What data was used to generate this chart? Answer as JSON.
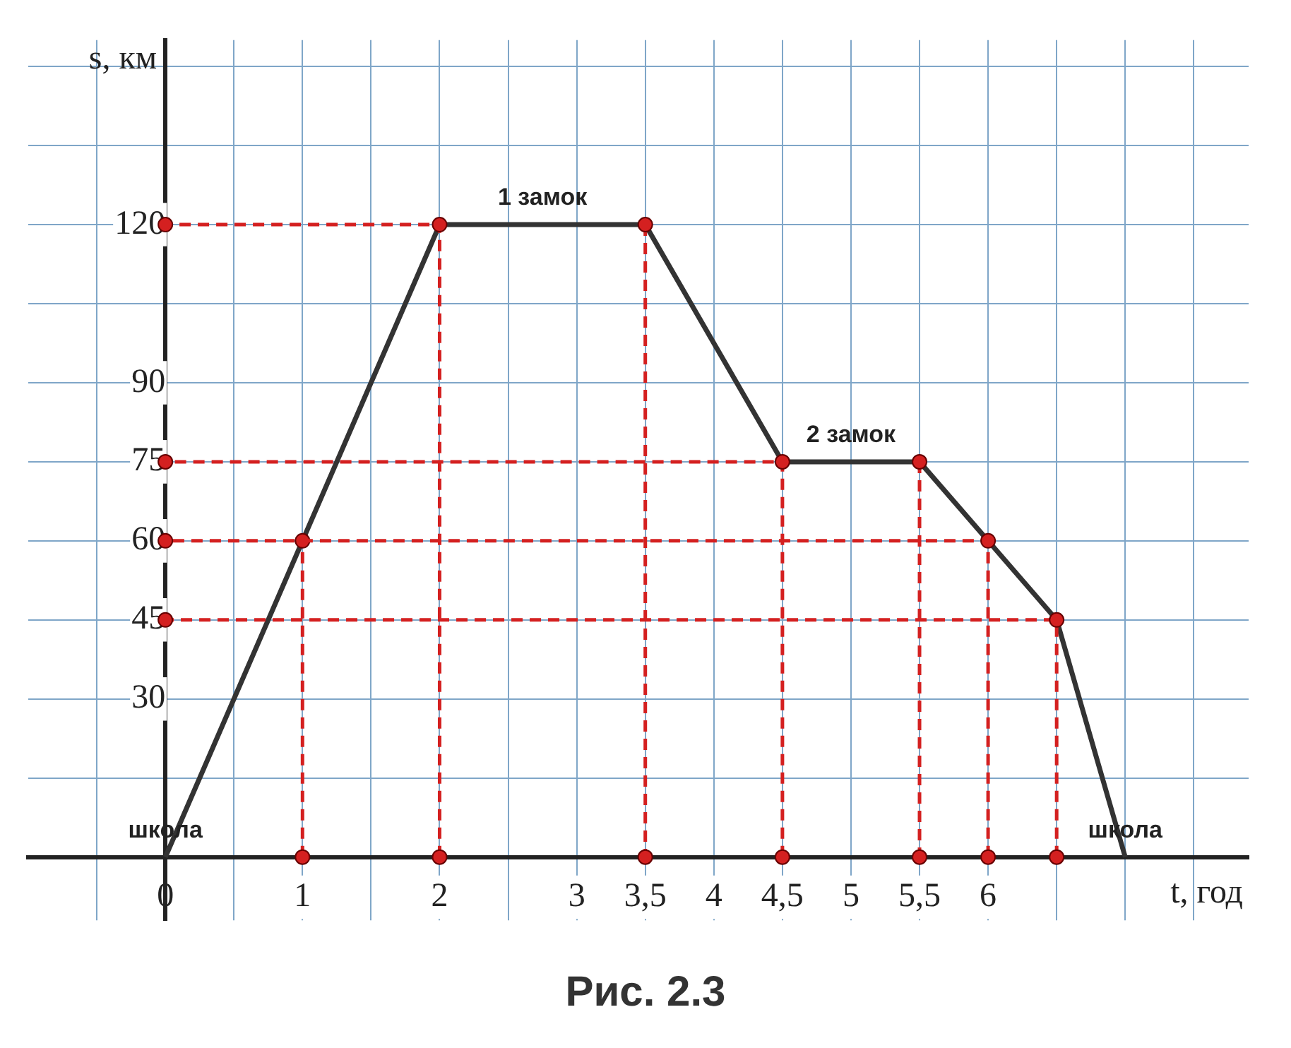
{
  "chart_data": {
    "type": "line",
    "xlabel": "t, год",
    "ylabel": "s, км",
    "xlim": [
      -1,
      7.9
    ],
    "ylim": [
      -12,
      155
    ],
    "xticks": [
      {
        "value": -0.5,
        "label": null
      },
      0,
      {
        "value": 0.5,
        "label": null
      },
      1,
      {
        "value": 1.5,
        "label": null
      },
      2,
      {
        "value": 2.5,
        "label": null
      },
      3,
      {
        "value": 3.5,
        "label": "3,5"
      },
      4,
      {
        "value": 4.5,
        "label": "4,5"
      },
      5,
      {
        "value": 5.5,
        "label": "5,5"
      },
      6,
      {
        "value": 6.5,
        "label": null
      },
      {
        "value": 7,
        "label": null
      },
      {
        "value": 7.5,
        "label": null
      }
    ],
    "yticks": [
      {
        "value": 15,
        "label": null
      },
      30,
      45,
      60,
      75,
      90,
      {
        "value": 105,
        "label": null
      },
      120,
      {
        "value": 135,
        "label": null
      },
      {
        "value": 150,
        "label": null
      }
    ],
    "grid": true,
    "legend": false,
    "series": [
      {
        "color": "#333333",
        "marker": "none",
        "line_style": "solid",
        "x": [
          0,
          1,
          2,
          3.5,
          4.5,
          5.5,
          6,
          6.5,
          7
        ],
        "values": [
          0,
          60,
          120,
          120,
          75,
          75,
          60,
          45,
          0
        ]
      },
      {
        "color": "#d42020",
        "marker": "circle",
        "line_style": "dashed",
        "x": [
          1,
          1
        ],
        "values": [
          0,
          60
        ]
      },
      {
        "color": "#d42020",
        "marker": "circle",
        "line_style": "dashed",
        "x": [
          2,
          2,
          0
        ],
        "values": [
          0,
          120,
          120
        ]
      },
      {
        "color": "#d42020",
        "marker": "circle",
        "line_style": "dashed",
        "x": [
          3.5,
          3.5
        ],
        "values": [
          120,
          0
        ]
      },
      {
        "color": "#d42020",
        "marker": "circle",
        "line_style": "dashed",
        "x": [
          4.5,
          4.5,
          0
        ],
        "values": [
          0,
          75,
          75
        ]
      },
      {
        "color": "#d42020",
        "marker": "circle",
        "line_style": "dashed",
        "x": [
          5.5,
          5.5
        ],
        "values": [
          75,
          0
        ]
      },
      {
        "color": "#d42020",
        "marker": "circle",
        "line_style": "dashed",
        "x": [
          6,
          6,
          0
        ],
        "values": [
          0,
          60,
          60
        ]
      },
      {
        "color": "#d42020",
        "marker": "circle",
        "line_style": "dashed",
        "x": [
          6.5,
          6.5,
          0
        ],
        "values": [
          0,
          45,
          45
        ]
      }
    ],
    "annotations": [
      {
        "text": "1 замок",
        "x": 2.75,
        "y": 120
      },
      {
        "text": "2 замок",
        "x": 5,
        "y": 75
      },
      {
        "text": "школа",
        "x": 0,
        "y": 0
      },
      {
        "text": "школа",
        "x": 7,
        "y": 0
      },
      "Рис. 2.3"
    ]
  }
}
